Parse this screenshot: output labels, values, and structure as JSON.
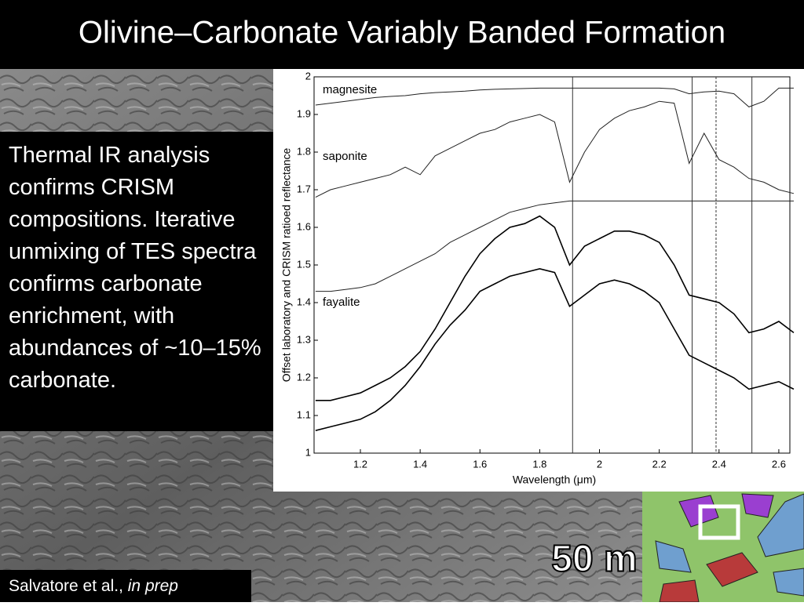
{
  "slide": {
    "title": "Olivine–Carbonate Variably Banded Formation",
    "body": "Thermal IR analysis confirms CRISM compositions. Iterative unmixing of TES spectra confirms carbonate enrichment, with abundances of ~10–15% carbonate.",
    "citation_authors": "Salvatore et al.,",
    "citation_note": "in prep",
    "scale_bar": "50 m"
  },
  "chart_data": {
    "type": "line",
    "xlabel": "Wavelength (μm)",
    "ylabel": "Offset laboratory and CRISM ratioed reflectance",
    "x": [
      1.05,
      1.1,
      1.15,
      1.2,
      1.25,
      1.3,
      1.35,
      1.4,
      1.45,
      1.5,
      1.55,
      1.6,
      1.65,
      1.7,
      1.75,
      1.8,
      1.85,
      1.9,
      1.95,
      2.0,
      2.05,
      2.1,
      2.15,
      2.2,
      2.25,
      2.3,
      2.35,
      2.4,
      2.45,
      2.5,
      2.55,
      2.6,
      2.65
    ],
    "series": [
      {
        "name": "magnesite",
        "color": "#222222",
        "values": [
          1.925,
          1.93,
          1.935,
          1.94,
          1.945,
          1.948,
          1.95,
          1.955,
          1.958,
          1.96,
          1.962,
          1.965,
          1.967,
          1.968,
          1.969,
          1.97,
          1.97,
          1.97,
          1.97,
          1.97,
          1.97,
          1.97,
          1.97,
          1.97,
          1.968,
          1.955,
          1.96,
          1.962,
          1.955,
          1.92,
          1.935,
          1.97,
          1.97
        ]
      },
      {
        "name": "saponite",
        "color": "#222222",
        "values": [
          1.68,
          1.7,
          1.71,
          1.72,
          1.73,
          1.74,
          1.76,
          1.74,
          1.79,
          1.81,
          1.83,
          1.85,
          1.86,
          1.88,
          1.89,
          1.9,
          1.88,
          1.72,
          1.8,
          1.86,
          1.89,
          1.91,
          1.92,
          1.935,
          1.93,
          1.77,
          1.85,
          1.78,
          1.76,
          1.73,
          1.72,
          1.7,
          1.69
        ]
      },
      {
        "name": "fayalite",
        "color": "#222222",
        "values": [
          1.43,
          1.43,
          1.435,
          1.44,
          1.45,
          1.47,
          1.49,
          1.51,
          1.53,
          1.56,
          1.58,
          1.6,
          1.62,
          1.64,
          1.65,
          1.66,
          1.665,
          1.67,
          1.67,
          1.67,
          1.67,
          1.67,
          1.67,
          1.67,
          1.67,
          1.67,
          1.67,
          1.67,
          1.67,
          1.67,
          1.67,
          1.67,
          1.67
        ]
      },
      {
        "color": "#000000",
        "values": [
          1.14,
          1.14,
          1.15,
          1.16,
          1.18,
          1.2,
          1.23,
          1.27,
          1.33,
          1.4,
          1.47,
          1.53,
          1.57,
          1.6,
          1.61,
          1.63,
          1.6,
          1.5,
          1.55,
          1.57,
          1.59,
          1.59,
          1.58,
          1.56,
          1.5,
          1.42,
          1.41,
          1.4,
          1.37,
          1.32,
          1.33,
          1.35,
          1.32
        ]
      },
      {
        "color": "#000000",
        "values": [
          1.06,
          1.07,
          1.08,
          1.09,
          1.11,
          1.14,
          1.18,
          1.23,
          1.29,
          1.34,
          1.38,
          1.43,
          1.45,
          1.47,
          1.48,
          1.49,
          1.48,
          1.39,
          1.42,
          1.45,
          1.46,
          1.45,
          1.43,
          1.4,
          1.33,
          1.26,
          1.24,
          1.22,
          1.2,
          1.17,
          1.18,
          1.19,
          1.17
        ]
      }
    ],
    "reference_lines": [
      {
        "x": 1.91,
        "dashed": false
      },
      {
        "x": 2.31,
        "dashed": false
      },
      {
        "x": 2.39,
        "dashed": true
      },
      {
        "x": 2.51,
        "dashed": false
      }
    ],
    "xlim": [
      1.045,
      2.637
    ],
    "ylim": [
      1,
      2
    ],
    "xticks": [
      1.2,
      1.4,
      1.6,
      1.8,
      2,
      2.2,
      2.4,
      2.6
    ],
    "yticks": [
      1,
      1.1,
      1.2,
      1.3,
      1.4,
      1.5,
      1.6,
      1.7,
      1.8,
      1.9,
      2
    ]
  }
}
